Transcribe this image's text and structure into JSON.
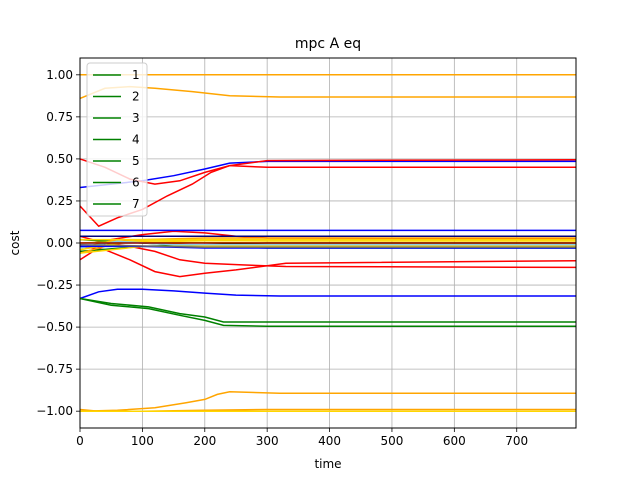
{
  "chart_data": {
    "type": "line",
    "title": "mpc A eq",
    "xlabel": "time",
    "ylabel": "cost",
    "xlim": [
      0,
      795
    ],
    "ylim": [
      -1.1,
      1.1
    ],
    "grid": true,
    "legend_placement": "top-left",
    "xticks": [
      0,
      100,
      200,
      300,
      400,
      500,
      600,
      700
    ],
    "yticks": [
      -1.0,
      -0.75,
      -0.5,
      -0.25,
      0.0,
      0.25,
      0.5,
      0.75,
      1.0
    ],
    "ytick_labels": [
      "−1.00",
      "−0.75",
      "−0.50",
      "−0.25",
      "0.00",
      "0.25",
      "0.50",
      "0.75",
      "1.00"
    ],
    "legend": [
      {
        "name": "1",
        "color": "#008000"
      },
      {
        "name": "2",
        "color": "#008000"
      },
      {
        "name": "3",
        "color": "#008000"
      },
      {
        "name": "4",
        "color": "#008000"
      },
      {
        "name": "5",
        "color": "#008000"
      },
      {
        "name": "6",
        "color": "#008000"
      },
      {
        "name": "7",
        "color": "#008000"
      }
    ],
    "series": [
      {
        "color": "#ffa500",
        "points": [
          [
            0,
            1.0
          ],
          [
            795,
            1.0
          ]
        ]
      },
      {
        "color": "#ffa500",
        "points": [
          [
            0,
            0.86
          ],
          [
            40,
            0.92
          ],
          [
            80,
            0.93
          ],
          [
            120,
            0.92
          ],
          [
            180,
            0.9
          ],
          [
            240,
            0.875
          ],
          [
            320,
            0.868
          ],
          [
            795,
            0.868
          ]
        ]
      },
      {
        "color": "#0000ff",
        "points": [
          [
            0,
            0.33
          ],
          [
            50,
            0.35
          ],
          [
            100,
            0.37
          ],
          [
            150,
            0.4
          ],
          [
            200,
            0.44
          ],
          [
            240,
            0.475
          ],
          [
            300,
            0.485
          ],
          [
            795,
            0.485
          ]
        ]
      },
      {
        "color": "#ff0000",
        "points": [
          [
            0,
            0.5
          ],
          [
            40,
            0.45
          ],
          [
            80,
            0.38
          ],
          [
            120,
            0.35
          ],
          [
            160,
            0.37
          ],
          [
            200,
            0.42
          ],
          [
            240,
            0.46
          ],
          [
            300,
            0.49
          ],
          [
            795,
            0.495
          ]
        ]
      },
      {
        "color": "#ff0000",
        "points": [
          [
            0,
            0.22
          ],
          [
            30,
            0.1
          ],
          [
            60,
            0.15
          ],
          [
            100,
            0.2
          ],
          [
            140,
            0.28
          ],
          [
            180,
            0.35
          ],
          [
            210,
            0.42
          ],
          [
            240,
            0.46
          ],
          [
            300,
            0.45
          ],
          [
            795,
            0.45
          ]
        ]
      },
      {
        "color": "#ff0000",
        "points": [
          [
            0,
            -0.1
          ],
          [
            50,
            0.02
          ],
          [
            100,
            0.05
          ],
          [
            150,
            0.07
          ],
          [
            200,
            0.06
          ],
          [
            250,
            0.04
          ],
          [
            300,
            0.03
          ],
          [
            795,
            0.025
          ]
        ]
      },
      {
        "color": "#ff0000",
        "points": [
          [
            0,
            -0.02
          ],
          [
            40,
            -0.04
          ],
          [
            80,
            -0.1
          ],
          [
            120,
            -0.17
          ],
          [
            160,
            -0.2
          ],
          [
            200,
            -0.18
          ],
          [
            250,
            -0.16
          ],
          [
            330,
            -0.12
          ],
          [
            795,
            -0.105
          ]
        ]
      },
      {
        "color": "#ff0000",
        "points": [
          [
            0,
            0.04
          ],
          [
            40,
            0.0
          ],
          [
            80,
            -0.02
          ],
          [
            120,
            -0.05
          ],
          [
            160,
            -0.1
          ],
          [
            200,
            -0.12
          ],
          [
            260,
            -0.13
          ],
          [
            330,
            -0.14
          ],
          [
            795,
            -0.145
          ]
        ]
      },
      {
        "color": "#0000ff",
        "points": [
          [
            0,
            0.075
          ],
          [
            795,
            0.075
          ]
        ]
      },
      {
        "color": "#000080",
        "points": [
          [
            0,
            0.04
          ],
          [
            795,
            0.04
          ]
        ]
      },
      {
        "color": "#0000ff",
        "points": [
          [
            0,
            -0.33
          ],
          [
            30,
            -0.29
          ],
          [
            60,
            -0.275
          ],
          [
            100,
            -0.275
          ],
          [
            150,
            -0.285
          ],
          [
            200,
            -0.298
          ],
          [
            250,
            -0.31
          ],
          [
            320,
            -0.315
          ],
          [
            795,
            -0.315
          ]
        ]
      },
      {
        "color": "#008000",
        "points": [
          [
            0,
            -0.33
          ],
          [
            50,
            -0.36
          ],
          [
            110,
            -0.38
          ],
          [
            160,
            -0.42
          ],
          [
            200,
            -0.44
          ],
          [
            230,
            -0.47
          ],
          [
            300,
            -0.47
          ],
          [
            795,
            -0.47
          ]
        ]
      },
      {
        "color": "#008000",
        "points": [
          [
            0,
            -0.33
          ],
          [
            50,
            -0.37
          ],
          [
            110,
            -0.39
          ],
          [
            160,
            -0.43
          ],
          [
            200,
            -0.46
          ],
          [
            230,
            -0.49
          ],
          [
            300,
            -0.495
          ],
          [
            795,
            -0.495
          ]
        ]
      },
      {
        "color": "#008000",
        "points": [
          [
            0,
            0.02
          ],
          [
            100,
            0.0
          ],
          [
            200,
            -0.02
          ],
          [
            300,
            -0.03
          ],
          [
            795,
            -0.03
          ]
        ]
      },
      {
        "color": "#008000",
        "points": [
          [
            0,
            -0.05
          ],
          [
            100,
            -0.02
          ],
          [
            200,
            -0.01
          ],
          [
            300,
            0.0
          ],
          [
            795,
            0.0
          ]
        ]
      },
      {
        "color": "#ffa500",
        "points": [
          [
            0,
            -1.0
          ],
          [
            60,
            -0.995
          ],
          [
            120,
            -0.98
          ],
          [
            170,
            -0.95
          ],
          [
            200,
            -0.93
          ],
          [
            220,
            -0.9
          ],
          [
            240,
            -0.885
          ],
          [
            320,
            -0.893
          ],
          [
            795,
            -0.893
          ]
        ]
      },
      {
        "color": "#ffa500",
        "points": [
          [
            0,
            -0.99
          ],
          [
            30,
            -1.0
          ],
          [
            100,
            -1.0
          ],
          [
            200,
            -0.995
          ],
          [
            300,
            -0.99
          ],
          [
            795,
            -0.99
          ]
        ]
      },
      {
        "color": "#ffd700",
        "points": [
          [
            0,
            -1.0
          ],
          [
            795,
            -1.0
          ]
        ]
      },
      {
        "color": "#ffa500",
        "points": [
          [
            0,
            -0.06
          ],
          [
            50,
            -0.01
          ],
          [
            100,
            0.02
          ],
          [
            200,
            0.03
          ],
          [
            300,
            0.03
          ],
          [
            795,
            0.03
          ]
        ]
      },
      {
        "color": "#ffa500",
        "points": [
          [
            0,
            -0.03
          ],
          [
            60,
            0.02
          ],
          [
            120,
            0.0
          ],
          [
            200,
            -0.015
          ],
          [
            795,
            -0.015
          ]
        ]
      },
      {
        "color": "#ffd700",
        "points": [
          [
            0,
            0.0
          ],
          [
            80,
            0.01
          ],
          [
            200,
            0.015
          ],
          [
            300,
            0.012
          ],
          [
            795,
            0.012
          ]
        ]
      },
      {
        "color": "#ffd700",
        "points": [
          [
            0,
            -0.04
          ],
          [
            60,
            0.0
          ],
          [
            150,
            0.005
          ],
          [
            300,
            0.0
          ],
          [
            795,
            0.0
          ]
        ]
      },
      {
        "color": "#ffd700",
        "points": [
          [
            0,
            0.02
          ],
          [
            795,
            0.02
          ]
        ]
      },
      {
        "color": "#ffd700",
        "points": [
          [
            0,
            -0.06
          ],
          [
            100,
            -0.02
          ],
          [
            795,
            -0.02
          ]
        ]
      },
      {
        "color": "#87ceeb",
        "points": [
          [
            0,
            -0.03
          ],
          [
            60,
            0.01
          ],
          [
            150,
            -0.01
          ],
          [
            795,
            -0.01
          ]
        ]
      },
      {
        "color": "#0000ff",
        "points": [
          [
            0,
            -0.02
          ],
          [
            100,
            -0.02
          ],
          [
            200,
            -0.03
          ],
          [
            795,
            -0.03
          ]
        ]
      },
      {
        "color": "#696969",
        "points": [
          [
            0,
            -0.01
          ],
          [
            200,
            -0.025
          ],
          [
            795,
            -0.025
          ]
        ]
      },
      {
        "color": "#8b0000",
        "points": [
          [
            0,
            0.0
          ],
          [
            795,
            0.0
          ]
        ]
      }
    ]
  }
}
